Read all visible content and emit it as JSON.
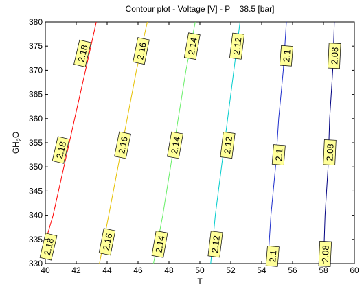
{
  "chart_data": {
    "type": "contour",
    "title": "Contour plot - Voltage [V] - P = 38.5 [bar]",
    "xlabel": "T",
    "ylabel_main": "GH",
    "ylabel_sub": "2",
    "ylabel_tail": "O",
    "xlim": [
      40,
      60
    ],
    "ylim": [
      330,
      380
    ],
    "xticks": [
      "40",
      "42",
      "44",
      "46",
      "48",
      "50",
      "52",
      "54",
      "56",
      "58",
      "60"
    ],
    "yticks": [
      "330",
      "335",
      "340",
      "345",
      "350",
      "355",
      "360",
      "365",
      "370",
      "375",
      "380"
    ],
    "grid": false,
    "contours": [
      {
        "level": "2.18",
        "color": "#ff0000",
        "points": [
          [
            40.0,
            334.5
          ],
          [
            40.5,
            340
          ],
          [
            41.2,
            350
          ],
          [
            41.9,
            360
          ],
          [
            42.6,
            370
          ],
          [
            43.3,
            380
          ]
        ],
        "labels": [
          [
            40.2,
            333.5
          ],
          [
            41.0,
            353.5
          ],
          [
            42.4,
            373.5
          ]
        ]
      },
      {
        "level": "2.16",
        "color": "#e6c000",
        "points": [
          [
            43.5,
            330
          ],
          [
            44.1,
            340
          ],
          [
            44.7,
            350
          ],
          [
            45.3,
            360
          ],
          [
            45.9,
            370
          ],
          [
            46.6,
            380
          ]
        ],
        "labels": [
          [
            44.0,
            334.5
          ],
          [
            45.0,
            354.5
          ],
          [
            46.2,
            374
          ]
        ]
      },
      {
        "level": "2.14",
        "color": "#66ee66",
        "points": [
          [
            47.0,
            330
          ],
          [
            47.6,
            340
          ],
          [
            48.1,
            350
          ],
          [
            48.6,
            360
          ],
          [
            49.1,
            370
          ],
          [
            49.7,
            380
          ]
        ],
        "labels": [
          [
            47.4,
            334
          ],
          [
            48.4,
            354.5
          ],
          [
            49.5,
            375
          ]
        ]
      },
      {
        "level": "2.12",
        "color": "#00cccc",
        "points": [
          [
            50.7,
            330
          ],
          [
            51.0,
            340
          ],
          [
            51.4,
            350
          ],
          [
            51.8,
            360
          ],
          [
            52.2,
            370
          ],
          [
            52.6,
            380
          ]
        ],
        "labels": [
          [
            51.0,
            334
          ],
          [
            51.8,
            354.5
          ],
          [
            52.4,
            375
          ]
        ]
      },
      {
        "level": "2.1",
        "color": "#2030cc",
        "points": [
          [
            54.4,
            330
          ],
          [
            54.6,
            340
          ],
          [
            54.9,
            350
          ],
          [
            55.1,
            360
          ],
          [
            55.4,
            370
          ],
          [
            55.6,
            380
          ]
        ],
        "labels": [
          [
            54.7,
            331.5
          ],
          [
            55.1,
            352.5
          ],
          [
            55.6,
            373
          ]
        ]
      },
      {
        "level": "2.08",
        "color": "#000080",
        "points": [
          [
            58.0,
            330
          ],
          [
            58.1,
            340
          ],
          [
            58.3,
            350
          ],
          [
            58.4,
            360
          ],
          [
            58.6,
            370
          ],
          [
            58.7,
            380
          ]
        ],
        "labels": [
          [
            58.1,
            332
          ],
          [
            58.4,
            353
          ],
          [
            58.7,
            373
          ]
        ]
      }
    ]
  }
}
